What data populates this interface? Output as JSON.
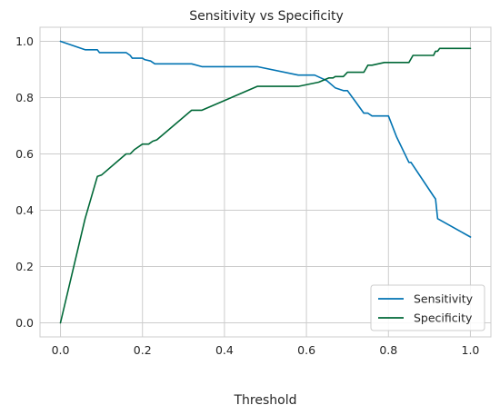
{
  "chart_data": {
    "type": "line",
    "title": "Sensitivity vs Specificity",
    "xlabel": "Threshold",
    "ylabel": "",
    "xlim": [
      -0.05,
      1.05
    ],
    "ylim": [
      -0.05,
      1.05
    ],
    "xticks": [
      0.0,
      0.2,
      0.4,
      0.6,
      0.8,
      1.0
    ],
    "xtick_labels": [
      "0.0",
      "0.2",
      "0.4",
      "0.6",
      "0.8",
      "1.0"
    ],
    "yticks": [
      0.0,
      0.2,
      0.4,
      0.6,
      0.8,
      1.0
    ],
    "ytick_labels": [
      "0.0",
      "0.2",
      "0.4",
      "0.6",
      "0.8",
      "1.0"
    ],
    "grid": true,
    "legend_position": "bottom-right",
    "series": [
      {
        "name": "Sensitivity",
        "color": "#0173b2",
        "points": [
          [
            0.0,
            1.0
          ],
          [
            0.06,
            0.97
          ],
          [
            0.09,
            0.97
          ],
          [
            0.095,
            0.96
          ],
          [
            0.16,
            0.96
          ],
          [
            0.17,
            0.95
          ],
          [
            0.175,
            0.94
          ],
          [
            0.2,
            0.94
          ],
          [
            0.205,
            0.935
          ],
          [
            0.22,
            0.93
          ],
          [
            0.23,
            0.92
          ],
          [
            0.32,
            0.92
          ],
          [
            0.345,
            0.91
          ],
          [
            0.48,
            0.91
          ],
          [
            0.58,
            0.88
          ],
          [
            0.62,
            0.88
          ],
          [
            0.635,
            0.87
          ],
          [
            0.65,
            0.86
          ],
          [
            0.67,
            0.835
          ],
          [
            0.69,
            0.825
          ],
          [
            0.7,
            0.825
          ],
          [
            0.72,
            0.785
          ],
          [
            0.74,
            0.745
          ],
          [
            0.75,
            0.745
          ],
          [
            0.76,
            0.735
          ],
          [
            0.8,
            0.735
          ],
          [
            0.82,
            0.66
          ],
          [
            0.85,
            0.57
          ],
          [
            0.855,
            0.57
          ],
          [
            0.91,
            0.45
          ],
          [
            0.915,
            0.44
          ],
          [
            0.92,
            0.37
          ],
          [
            1.0,
            0.305
          ]
        ]
      },
      {
        "name": "Specificity",
        "color": "#006837",
        "points": [
          [
            0.0,
            0.0
          ],
          [
            0.06,
            0.37
          ],
          [
            0.09,
            0.52
          ],
          [
            0.1,
            0.525
          ],
          [
            0.16,
            0.6
          ],
          [
            0.17,
            0.6
          ],
          [
            0.18,
            0.615
          ],
          [
            0.2,
            0.635
          ],
          [
            0.215,
            0.635
          ],
          [
            0.225,
            0.645
          ],
          [
            0.235,
            0.65
          ],
          [
            0.32,
            0.755
          ],
          [
            0.345,
            0.755
          ],
          [
            0.48,
            0.84
          ],
          [
            0.58,
            0.84
          ],
          [
            0.63,
            0.855
          ],
          [
            0.655,
            0.87
          ],
          [
            0.665,
            0.87
          ],
          [
            0.67,
            0.875
          ],
          [
            0.69,
            0.875
          ],
          [
            0.7,
            0.89
          ],
          [
            0.74,
            0.89
          ],
          [
            0.75,
            0.915
          ],
          [
            0.76,
            0.915
          ],
          [
            0.79,
            0.925
          ],
          [
            0.85,
            0.925
          ],
          [
            0.86,
            0.95
          ],
          [
            0.91,
            0.95
          ],
          [
            0.915,
            0.965
          ],
          [
            0.92,
            0.965
          ],
          [
            0.925,
            0.975
          ],
          [
            1.0,
            0.975
          ]
        ]
      }
    ]
  }
}
